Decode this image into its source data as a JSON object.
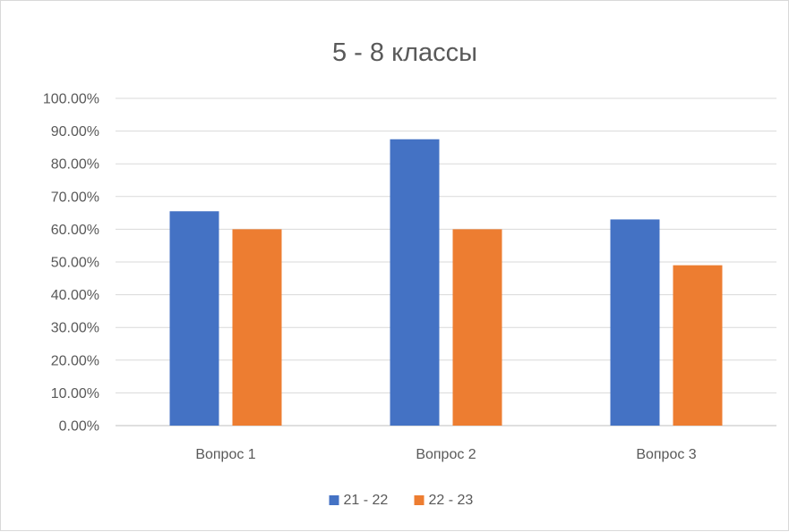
{
  "chart_data": {
    "type": "bar",
    "title": "5 - 8 классы",
    "xlabel": "",
    "ylabel": "",
    "categories": [
      "Вопрос 1",
      "Вопрос 2",
      "Вопрос 3"
    ],
    "series": [
      {
        "name": "21 - 22",
        "color": "#4472c4",
        "values": [
          0.655,
          0.875,
          0.63
        ]
      },
      {
        "name": "22 - 23",
        "color": "#ed7d31",
        "values": [
          0.6,
          0.6,
          0.49
        ]
      }
    ],
    "ylim": [
      0,
      1.0
    ],
    "yticks": [
      0,
      0.1,
      0.2,
      0.3,
      0.4,
      0.5,
      0.6,
      0.7,
      0.8,
      0.9,
      1.0
    ],
    "ytick_labels": [
      "0.00%",
      "10.00%",
      "20.00%",
      "30.00%",
      "40.00%",
      "50.00%",
      "60.00%",
      "70.00%",
      "80.00%",
      "90.00%",
      "100.00%"
    ],
    "grid": true,
    "legend_position": "bottom"
  }
}
